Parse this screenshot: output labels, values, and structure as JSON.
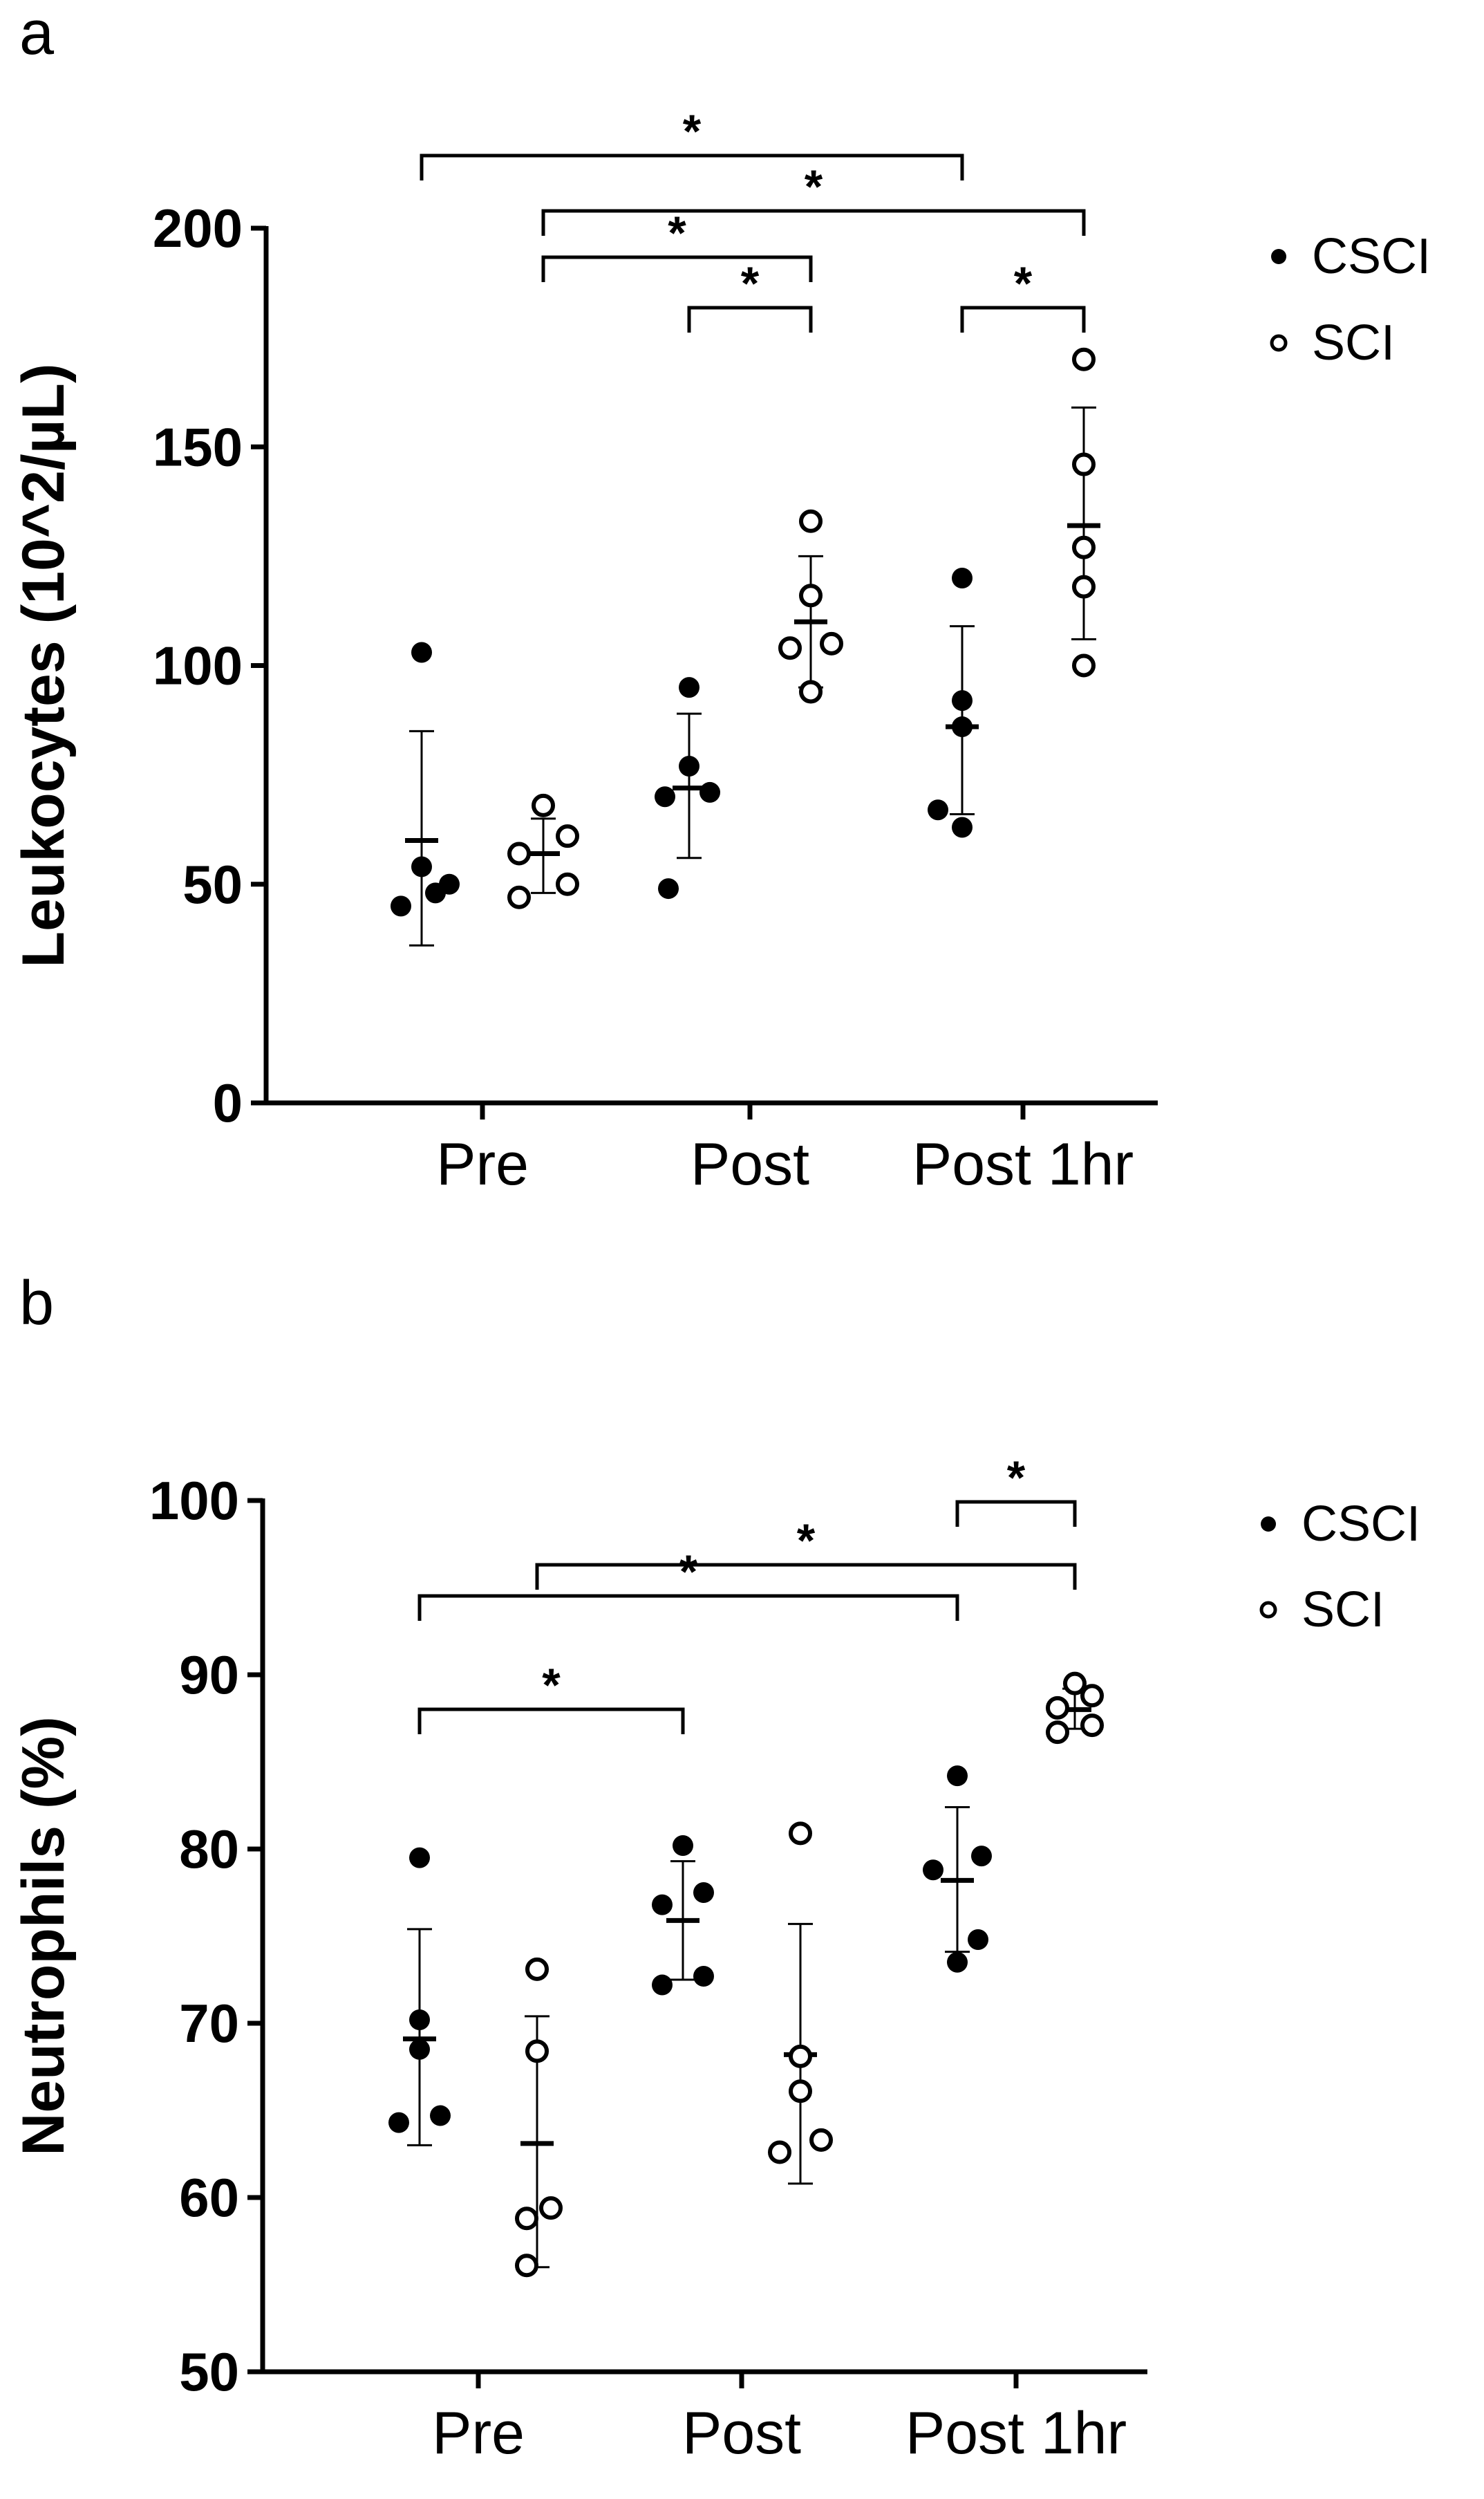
{
  "chart_data": [
    {
      "type": "scatter",
      "panel_label": "a",
      "ylabel": "Leukocytes (10^2/µL)",
      "xlabel": "",
      "ylim": [
        0,
        200
      ],
      "yticks": [
        0,
        50,
        100,
        150,
        200
      ],
      "categories": [
        "Pre",
        "Post",
        "Post 1hr"
      ],
      "legend": {
        "position": "top-right",
        "entries": [
          "CSCI",
          "SCI"
        ]
      },
      "series": [
        {
          "name": "CSCI",
          "marker": "filled",
          "points": [
            [
              45,
              48,
              50,
              54,
              103
            ],
            [
              49,
              70,
              71,
              77,
              95
            ],
            [
              63,
              67,
              86,
              92,
              120
            ]
          ],
          "mean": [
            60,
            72,
            86
          ],
          "error_low": [
            36,
            56,
            66
          ],
          "error_high": [
            85,
            89,
            109
          ]
        },
        {
          "name": "SCI",
          "marker": "open",
          "points": [
            [
              47,
              50,
              57,
              61,
              68
            ],
            [
              94,
              104,
              105,
              116,
              133
            ],
            [
              100,
              118,
              127,
              146,
              170
            ]
          ],
          "mean": [
            57,
            110,
            132
          ],
          "error_low": [
            48,
            95,
            106
          ],
          "error_high": [
            65,
            125,
            159
          ]
        }
      ],
      "significance": [
        {
          "from": "CSCI|Pre",
          "to": "CSCI|Post 1hr",
          "label": "*"
        },
        {
          "from": "SCI|Pre",
          "to": "SCI|Post 1hr",
          "label": "*"
        },
        {
          "from": "SCI|Pre",
          "to": "SCI|Post",
          "label": "*"
        },
        {
          "from": "CSCI|Post",
          "to": "SCI|Post",
          "label": "*"
        },
        {
          "from": "CSCI|Post 1hr",
          "to": "SCI|Post 1hr",
          "label": "*"
        }
      ]
    },
    {
      "type": "scatter",
      "panel_label": "b",
      "ylabel": "Neutrophils (%)",
      "xlabel": "",
      "ylim": [
        50,
        100
      ],
      "yticks": [
        50,
        60,
        70,
        80,
        90,
        100
      ],
      "categories": [
        "Pre",
        "Post",
        "Post 1hr"
      ],
      "legend": {
        "position": "top-right",
        "entries": [
          "CSCI",
          "SCI"
        ]
      },
      "series": [
        {
          "name": "CSCI",
          "marker": "filled",
          "points": [
            [
              64.3,
              64.7,
              68.5,
              70.2,
              79.5
            ],
            [
              72.2,
              72.7,
              76.8,
              77.5,
              80.2
            ],
            [
              73.5,
              74.8,
              78.8,
              79.6,
              84.2
            ]
          ],
          "mean": [
            69.1,
            75.9,
            78.2
          ],
          "error_low": [
            63.0,
            72.5,
            74.1
          ],
          "error_high": [
            75.4,
            79.3,
            82.4
          ]
        },
        {
          "name": "SCI",
          "marker": "open",
          "points": [
            [
              56.1,
              58.8,
              59.4,
              68.4,
              73.1
            ],
            [
              62.6,
              63.3,
              66.1,
              68.1,
              80.9
            ],
            [
              86.7,
              87.1,
              88.1,
              88.8,
              89.5
            ]
          ],
          "mean": [
            63.1,
            68.2,
            88.0
          ],
          "error_low": [
            56.0,
            60.8,
            86.9
          ],
          "error_high": [
            70.4,
            75.7,
            89.2
          ]
        }
      ],
      "significance": [
        {
          "from": "SCI|Post 1hr",
          "to": "CSCI|Post 1hr",
          "label": "*"
        },
        {
          "from": "SCI|Pre",
          "to": "SCI|Post 1hr",
          "label": "*"
        },
        {
          "from": "CSCI|Pre",
          "to": "CSCI|Post 1hr",
          "label": "*"
        },
        {
          "from": "CSCI|Pre",
          "to": "CSCI|Post",
          "label": "*"
        }
      ]
    }
  ]
}
